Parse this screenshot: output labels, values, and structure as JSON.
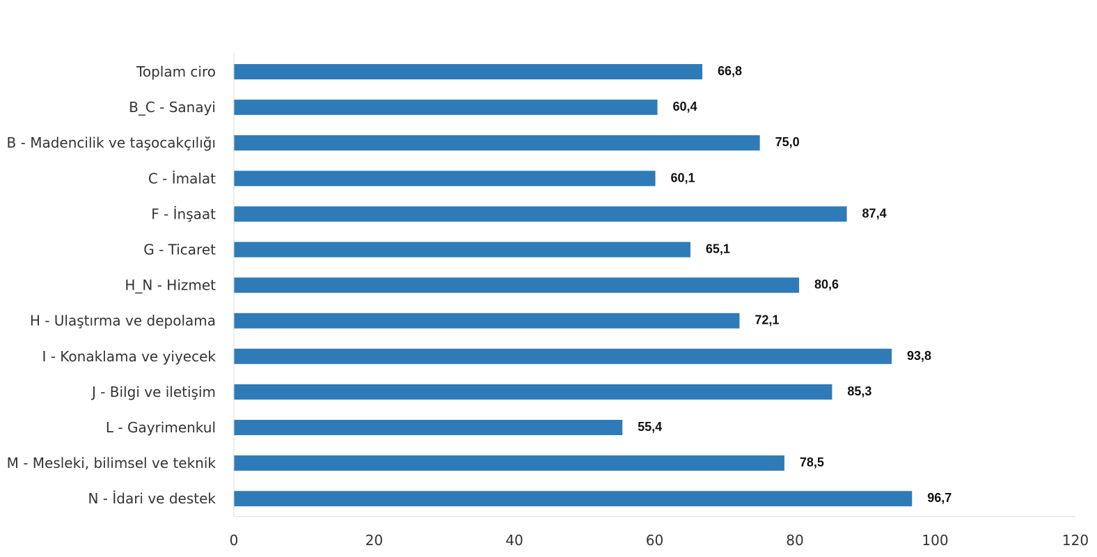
{
  "chart_data": {
    "type": "bar",
    "orientation": "horizontal",
    "title": "",
    "xlabel": "",
    "ylabel": "",
    "xlim": [
      0,
      120
    ],
    "x_ticks": [
      "0",
      "20",
      "40",
      "60",
      "80",
      "100",
      "120"
    ],
    "grid": false,
    "legend": "none",
    "bar_color": "#2E7BB7",
    "categories": [
      "Toplam ciro",
      "B_C - Sanayi",
      "B - Madencilik ve taşocakçılığı",
      "C - İmalat",
      "F - İnşaat",
      "G - Ticaret",
      "H_N - Hizmet",
      "H - Ulaştırma ve depolama",
      "I - Konaklama ve yiyecek",
      "J - Bilgi ve iletişim",
      "L - Gayrimenkul",
      "M - Mesleki, bilimsel ve teknik",
      "N - İdari ve destek"
    ],
    "values": [
      66.8,
      60.4,
      75.0,
      60.1,
      87.4,
      65.1,
      80.6,
      72.1,
      93.8,
      85.3,
      55.4,
      78.5,
      96.7
    ],
    "value_labels": [
      "66,8",
      "60,4",
      "75,0",
      "60,1",
      "87,4",
      "65,1",
      "80,6",
      "72,1",
      "93,8",
      "85,3",
      "55,4",
      "78,5",
      "96,7"
    ]
  }
}
